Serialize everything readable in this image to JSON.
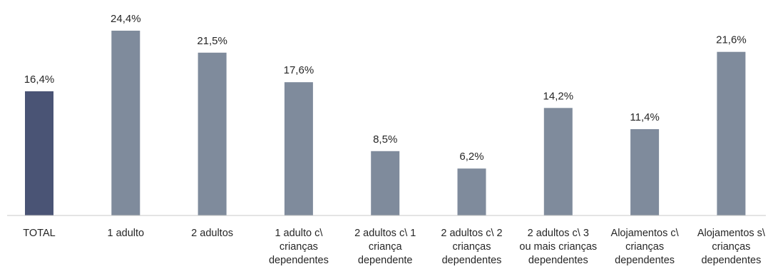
{
  "chart_data": {
    "type": "bar",
    "title": "",
    "xlabel": "",
    "ylabel": "",
    "ylim": [
      0,
      24.4
    ],
    "grid": false,
    "legend": "none",
    "value_suffix": "%",
    "categories": [
      [
        "TOTAL"
      ],
      [
        "1 adulto"
      ],
      [
        "2 adultos"
      ],
      [
        "1 adulto c\\",
        "crianças",
        "dependentes"
      ],
      [
        "2 adultos c\\ 1",
        "criança",
        "dependente"
      ],
      [
        "2 adultos c\\ 2",
        "crianças",
        "dependentes"
      ],
      [
        "2 adultos c\\ 3",
        "ou mais crianças",
        "dependentes"
      ],
      [
        "Alojamentos c\\",
        "crianças",
        "dependentes"
      ],
      [
        "Alojamentos s\\",
        "crianças",
        "dependentes"
      ]
    ],
    "values": [
      16.4,
      24.4,
      21.5,
      17.6,
      8.5,
      6.2,
      14.2,
      11.4,
      21.6
    ],
    "value_labels": [
      "16,4%",
      "24,4%",
      "21,5%",
      "17,6%",
      "8,5%",
      "6,2%",
      "14,2%",
      "11,4%",
      "21,6%"
    ],
    "colors": {
      "highlight": "#4a5475",
      "default": "#7f8b9c",
      "axis": "#c8c8c8"
    },
    "highlight_index": 0
  }
}
